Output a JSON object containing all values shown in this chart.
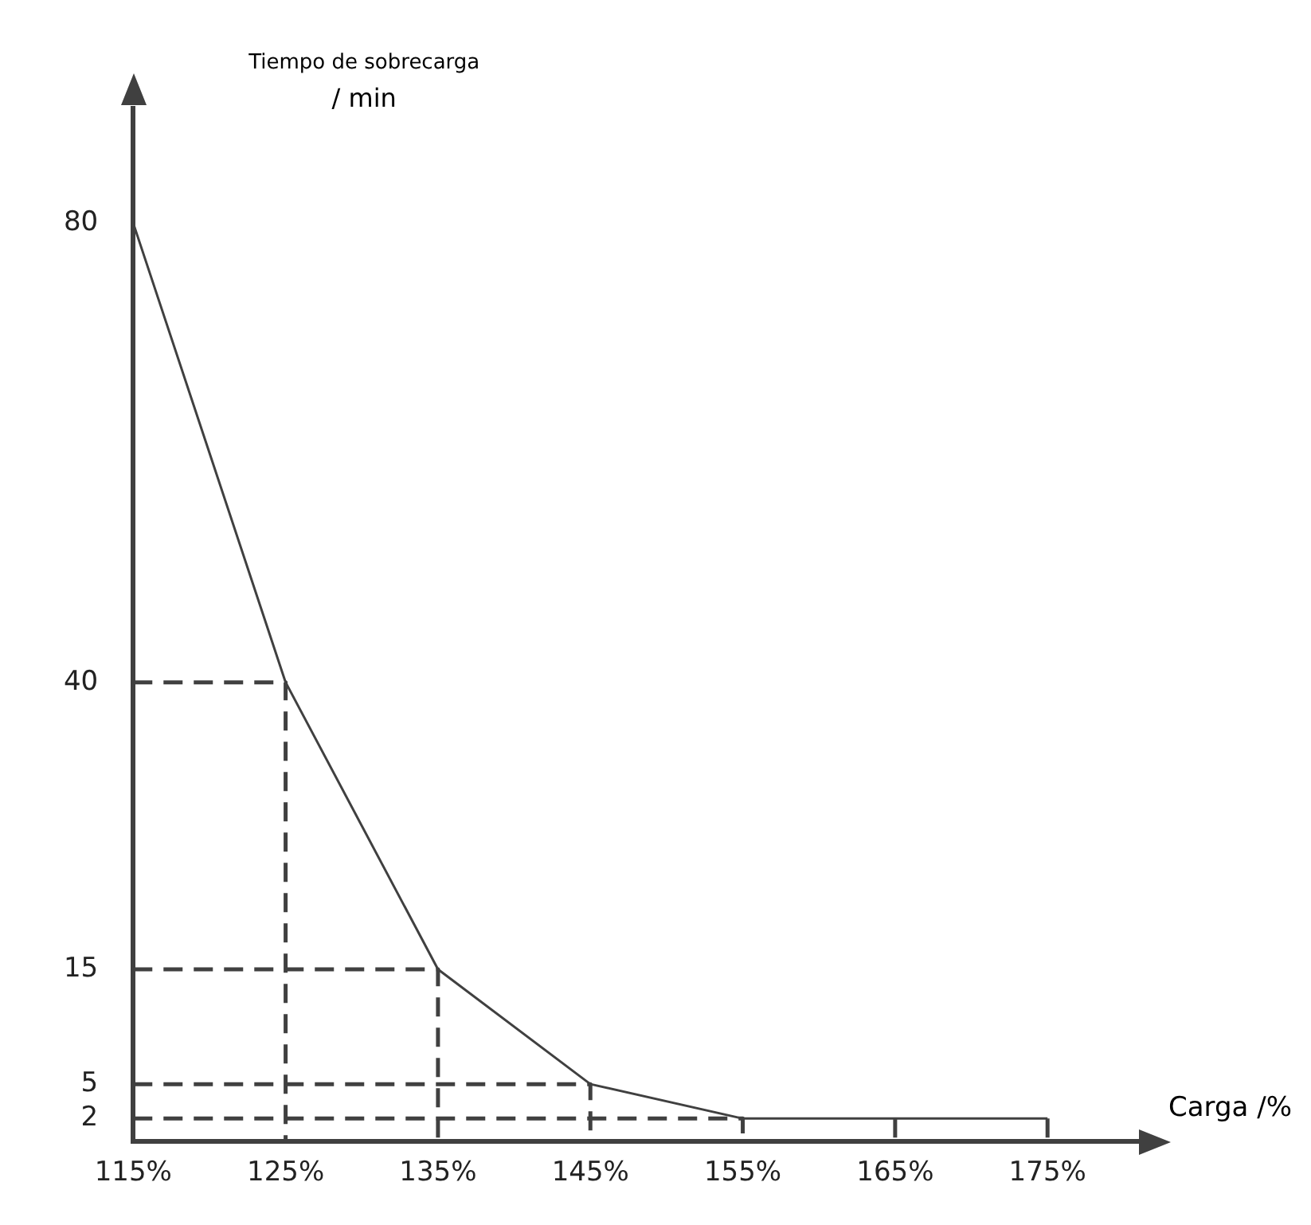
{
  "chart_data": {
    "type": "line",
    "xlabel": "Carga /%",
    "ylabel": "Tiempo de sobrecarga / min",
    "series": [
      {
        "color": "#404040",
        "line_style": "solid",
        "x": [
          115,
          125,
          135,
          145,
          155,
          175
        ],
        "values": [
          80,
          40,
          15,
          5,
          2,
          2
        ]
      },
      {
        "color": "#404040",
        "line_style": "dashed",
        "x": [
          115,
          125,
          125,
          null,
          115,
          135,
          135,
          null,
          115,
          145,
          145,
          null,
          115,
          155,
          155,
          null,
          165,
          165,
          null,
          175,
          175
        ],
        "values": [
          40,
          40,
          0,
          null,
          15,
          15,
          0,
          null,
          5,
          5,
          0,
          null,
          2,
          2,
          0,
          null,
          2,
          0,
          null,
          2,
          0
        ]
      }
    ],
    "xlim": [
      115,
      181
    ],
    "xticks": [
      {
        "value": 115,
        "label": "115%"
      },
      {
        "value": 125,
        "label": "125%"
      },
      {
        "value": 135,
        "label": "135%"
      },
      {
        "value": 145,
        "label": "145%"
      },
      {
        "value": 155,
        "label": "155%"
      },
      {
        "value": 165,
        "label": "165%"
      },
      {
        "value": 175,
        "label": "175%"
      }
    ],
    "ylim": [
      0,
      90
    ],
    "yticks": [
      2,
      5,
      15,
      40,
      80
    ],
    "grid": false,
    "legend": false,
    "marker": "none"
  }
}
